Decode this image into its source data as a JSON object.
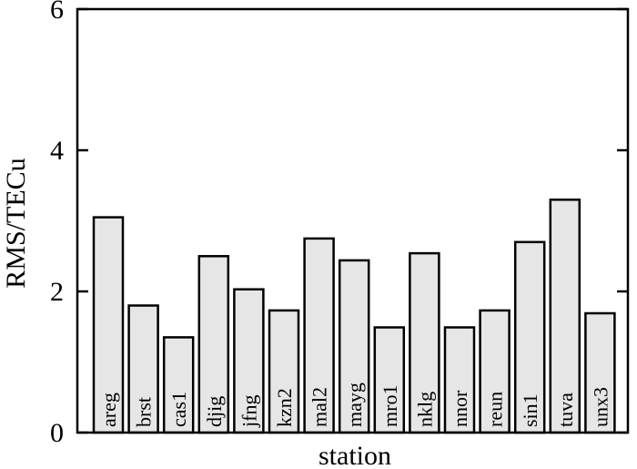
{
  "chart_data": {
    "type": "bar",
    "categories": [
      "areg",
      "brst",
      "cas1",
      "djig",
      "jfng",
      "kzn2",
      "mal2",
      "mayg",
      "mro1",
      "nklg",
      "nnor",
      "reun",
      "sin1",
      "tuva",
      "unx3"
    ],
    "values": [
      3.05,
      1.8,
      1.35,
      2.5,
      2.03,
      1.73,
      2.75,
      2.44,
      1.49,
      2.54,
      1.49,
      1.73,
      2.7,
      3.3,
      1.69
    ],
    "xlabel": "station",
    "ylabel": "RMS/TECu",
    "ylim": [
      0,
      6
    ],
    "yticks": [
      0,
      2,
      4,
      6
    ],
    "grid": false,
    "bar_color": "#e6e6e6",
    "edge_color": "#000000"
  }
}
